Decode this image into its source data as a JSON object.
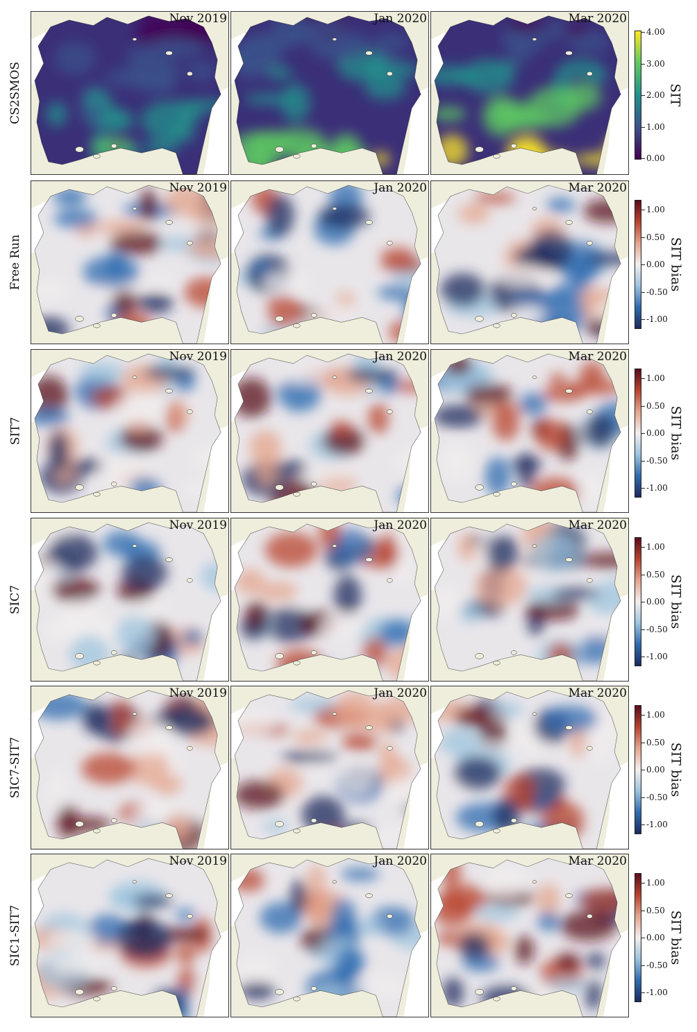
{
  "rows": [
    {
      "label": "CS2SMOS",
      "kind": "sit"
    },
    {
      "label": "Free Run",
      "kind": "bias"
    },
    {
      "label": "SIT7",
      "kind": "bias"
    },
    {
      "label": "SIC7",
      "kind": "bias"
    },
    {
      "label": "SIC7-SIT7",
      "kind": "bias"
    },
    {
      "label": "SIC1-SIT7",
      "kind": "bias"
    }
  ],
  "months": [
    "Nov 2019",
    "Jan 2020",
    "Mar 2020"
  ],
  "colorbars": {
    "sit": {
      "title": "SIT",
      "ticks": [
        "4.00",
        "3.00",
        "2.00",
        "1.00",
        "0.00"
      ],
      "colors": [
        "#440154",
        "#3b528b",
        "#21918c",
        "#5ec962",
        "#fde725"
      ]
    },
    "bias": {
      "title": "SIT bias",
      "ticks": [
        "1.00",
        "0.50",
        "0.00",
        "-0.50",
        "-1.00"
      ],
      "colors": [
        "#1b2a5c",
        "#2f6bb0",
        "#9ec4de",
        "#f2eeee",
        "#e4a58e",
        "#b8432f",
        "#5a0d1a"
      ]
    }
  },
  "colors": {
    "land": "#efeedd",
    "ocean": "#ffffff"
  }
}
